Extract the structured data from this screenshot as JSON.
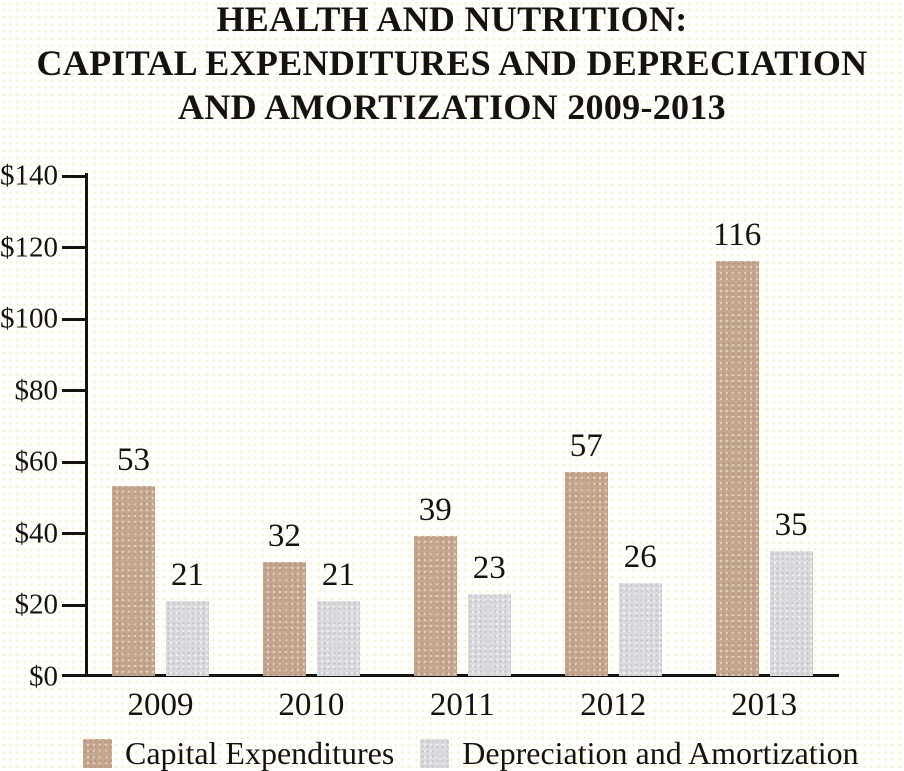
{
  "title": {
    "lines": [
      "HEALTH AND NUTRITION:",
      "CAPITAL EXPENDITURES AND DEPRECIATION",
      "AND AMORTIZATION 2009-2013"
    ]
  },
  "chart_data": {
    "type": "bar",
    "title": "HEALTH AND NUTRITION: CAPITAL EXPENDITURES AND DEPRECIATION AND AMORTIZATION 2009-2013",
    "categories": [
      "2009",
      "2010",
      "2011",
      "2012",
      "2013"
    ],
    "series": [
      {
        "name": "Capital Expenditures",
        "color": "#c5a791",
        "values": [
          53,
          32,
          39,
          57,
          116
        ]
      },
      {
        "name": "Depreciation and Amortization",
        "color": "#d9dbdd",
        "values": [
          21,
          21,
          23,
          26,
          35
        ]
      }
    ],
    "xlabel": "",
    "ylabel": "",
    "ylim": [
      0,
      140
    ],
    "yticks": [
      {
        "value": 0,
        "label": "$0"
      },
      {
        "value": 20,
        "label": "$20"
      },
      {
        "value": 40,
        "label": "$40"
      },
      {
        "value": 60,
        "label": "$60"
      },
      {
        "value": 80,
        "label": "$80"
      },
      {
        "value": 100,
        "label": "$100"
      },
      {
        "value": 120,
        "label": "$120"
      },
      {
        "value": 140,
        "label": "$140"
      }
    ],
    "grid": false,
    "value_labels": true,
    "legend_position": "bottom"
  },
  "colors": {
    "text": "#15120f",
    "axis": "#15120f",
    "background": "#fffffd",
    "series0": "#c5a791",
    "series1": "#d9dbdd"
  }
}
